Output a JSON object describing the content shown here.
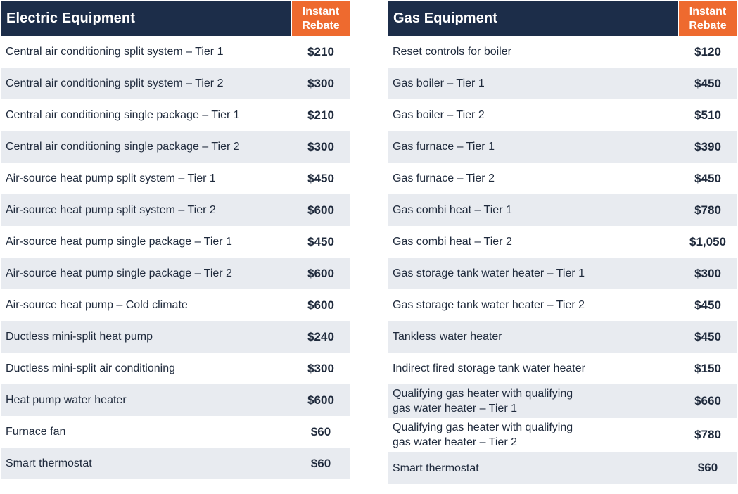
{
  "electric": {
    "title": "Electric Equipment",
    "rebate_header": [
      "Instant",
      "Rebate"
    ],
    "rows": [
      {
        "name": "Central air conditioning split system – Tier 1",
        "price": "$210"
      },
      {
        "name": "Central air conditioning split system – Tier 2",
        "price": "$300"
      },
      {
        "name": "Central air conditioning single package – Tier 1",
        "price": "$210"
      },
      {
        "name": "Central air conditioning single package – Tier 2",
        "price": "$300"
      },
      {
        "name": "Air-source heat pump split system – Tier 1",
        "price": "$450"
      },
      {
        "name": "Air-source heat pump split system – Tier 2",
        "price": "$600"
      },
      {
        "name": "Air-source heat pump single package – Tier 1",
        "price": "$450"
      },
      {
        "name": "Air-source heat pump single package – Tier 2",
        "price": "$600"
      },
      {
        "name": "Air-source heat pump – Cold climate",
        "price": "$600"
      },
      {
        "name": "Ductless mini-split heat pump",
        "price": "$240"
      },
      {
        "name": "Ductless mini-split air conditioning",
        "price": "$300"
      },
      {
        "name": "Heat pump water heater",
        "price": "$600"
      },
      {
        "name": "Furnace fan",
        "price": "$60"
      },
      {
        "name": "Smart thermostat",
        "price": "$60"
      }
    ]
  },
  "gas": {
    "title": "Gas Equipment",
    "rebate_header": [
      "Instant",
      "Rebate"
    ],
    "rows": [
      {
        "name": "Reset controls for boiler",
        "price": "$120"
      },
      {
        "name": "Gas boiler – Tier 1",
        "price": "$450"
      },
      {
        "name": "Gas boiler – Tier 2",
        "price": "$510"
      },
      {
        "name": "Gas furnace – Tier 1",
        "price": "$390"
      },
      {
        "name": "Gas furnace – Tier 2",
        "price": "$450"
      },
      {
        "name": "Gas combi heat – Tier 1",
        "price": "$780"
      },
      {
        "name": "Gas combi heat – Tier 2",
        "price": "$1,050"
      },
      {
        "name": "Gas storage tank water heater – Tier 1",
        "price": "$300"
      },
      {
        "name": "Gas storage tank water heater – Tier 2",
        "price": "$450"
      },
      {
        "name": "Tankless water heater",
        "price": "$450"
      },
      {
        "name": "Indirect fired storage tank water heater",
        "price": "$150"
      },
      {
        "name": [
          "Qualifying gas heater with qualifying",
          "gas water heater – Tier 1"
        ],
        "price": "$660"
      },
      {
        "name": [
          "Qualifying gas heater with qualifying",
          "gas water heater – Tier 2"
        ],
        "price": "$780"
      },
      {
        "name": "Smart thermostat",
        "price": "$60"
      }
    ]
  },
  "colors": {
    "header_navy": "#1c2d49",
    "rebate_orange": "#ee6a2f",
    "row_shade": "#e8ebf0",
    "text": "#1f2a3c"
  }
}
